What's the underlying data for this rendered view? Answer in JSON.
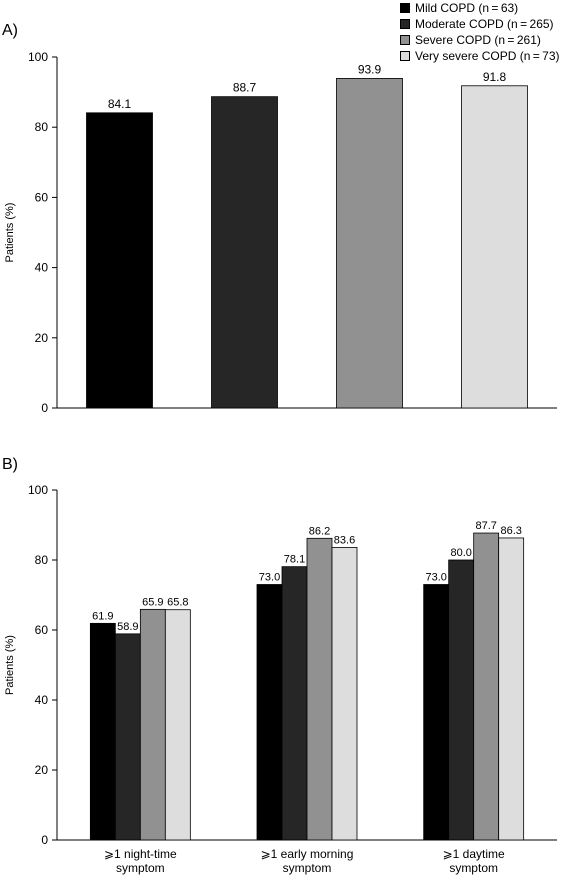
{
  "legend": [
    {
      "label": "Mild COPD (n = 63)",
      "color": "#000000"
    },
    {
      "label": "Moderate COPD (n = 265)",
      "color": "#262626"
    },
    {
      "label": "Severe COPD (n = 261)",
      "color": "#919191"
    },
    {
      "label": "Very severe COPD (n = 73)",
      "color": "#dddddd"
    }
  ],
  "chart_data": [
    {
      "panel": "A)",
      "type": "bar",
      "ylabel": "Patients (%)",
      "ylim": [
        0,
        100
      ],
      "yticks": [
        0,
        20,
        40,
        60,
        80,
        100
      ],
      "categories": [
        "Mild COPD (n = 63)",
        "Moderate COPD (n = 265)",
        "Severe COPD (n = 261)",
        "Very severe COPD (n = 73)"
      ],
      "values": [
        84.1,
        88.7,
        93.9,
        91.8
      ],
      "value_labels": [
        "84.1",
        "88.7",
        "93.9",
        "91.8"
      ],
      "colors": [
        "#000000",
        "#262626",
        "#919191",
        "#dddddd"
      ]
    },
    {
      "panel": "B)",
      "type": "bar",
      "ylabel": "Patients (%)",
      "ylim": [
        0,
        100
      ],
      "yticks": [
        0,
        20,
        40,
        60,
        80,
        100
      ],
      "categories": [
        [
          "⩾1 night-time",
          "symptom"
        ],
        [
          "⩾1 early morning",
          "symptom"
        ],
        [
          "⩾1 daytime",
          "symptom"
        ]
      ],
      "series": [
        {
          "name": "Mild COPD (n = 63)",
          "values": [
            61.9,
            73.0,
            73.0
          ],
          "labels": [
            "61.9",
            "73.0",
            "73.0"
          ],
          "color": "#000000"
        },
        {
          "name": "Moderate COPD (n = 265)",
          "values": [
            58.9,
            78.1,
            80.0
          ],
          "labels": [
            "58.9",
            "78.1",
            "80.0"
          ],
          "color": "#262626"
        },
        {
          "name": "Severe COPD (n = 261)",
          "values": [
            65.9,
            86.2,
            87.7
          ],
          "labels": [
            "65.9",
            "86.2",
            "87.7"
          ],
          "color": "#919191"
        },
        {
          "name": "Very severe COPD (n = 73)",
          "values": [
            65.8,
            83.6,
            86.3
          ],
          "labels": [
            "65.8",
            "83.6",
            "86.3"
          ],
          "color": "#dddddd"
        }
      ]
    }
  ]
}
